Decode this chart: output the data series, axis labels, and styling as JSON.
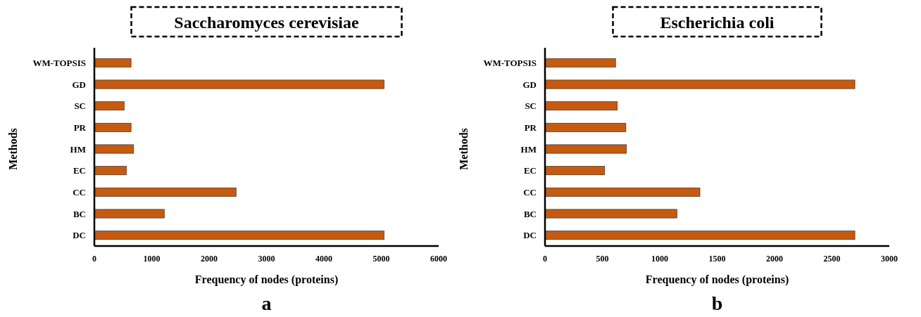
{
  "chart_data": [
    {
      "type": "bar",
      "orientation": "horizontal",
      "title": "Saccharomyces cerevisiae",
      "xlabel": "Frequency of nodes (proteins)",
      "ylabel": "Methods",
      "categories": [
        "WM-TOPSIS",
        "GD",
        "SC",
        "PR",
        "HM",
        "EC",
        "CC",
        "BC",
        "DC"
      ],
      "values": [
        640,
        5050,
        520,
        640,
        685,
        558,
        2470,
        1220,
        5050
      ],
      "color": "#c55a11",
      "xlim": [
        0,
        6000
      ],
      "xticks": [
        0,
        1000,
        2000,
        3000,
        4000,
        5000,
        6000
      ],
      "grid": false,
      "annotations": [
        "a"
      ]
    },
    {
      "type": "bar",
      "orientation": "horizontal",
      "title": "Escherichia coli",
      "xlabel": "Frequency of nodes (proteins)",
      "ylabel": "Methods",
      "categories": [
        "WM-TOPSIS",
        "GD",
        "SC",
        "PR",
        "HM",
        "EC",
        "CC",
        "BC",
        "DC"
      ],
      "values": [
        615,
        2700,
        630,
        705,
        710,
        520,
        1350,
        1150,
        2700
      ],
      "color": "#c55a11",
      "xlim": [
        0,
        3000
      ],
      "xticks": [
        0,
        500,
        1000,
        1500,
        2000,
        2500,
        3000
      ],
      "grid": false,
      "annotations": [
        "b"
      ]
    }
  ]
}
